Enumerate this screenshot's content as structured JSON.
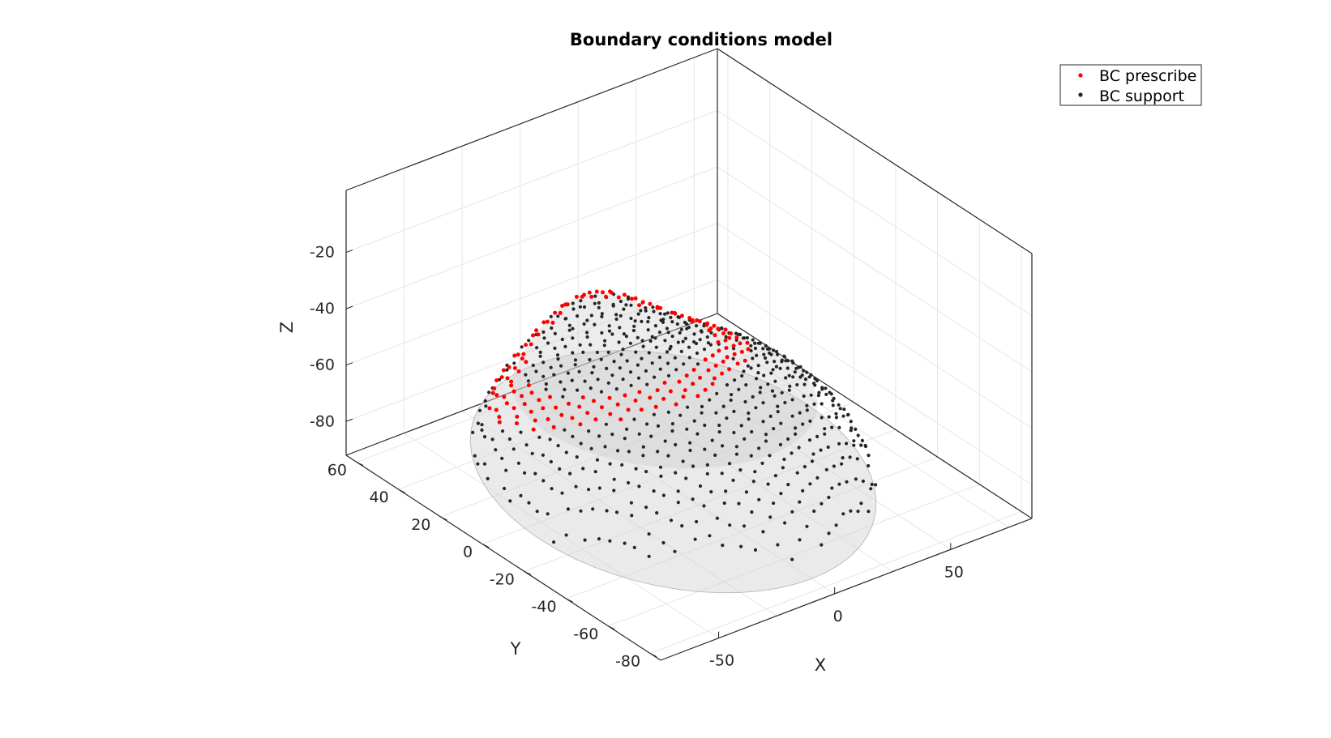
{
  "chart_data": {
    "type": "scatter",
    "projection": "3d",
    "title": "Boundary conditions model",
    "xlabel": "X",
    "ylabel": "Y",
    "zlabel": "Z",
    "xlim": [
      -75,
      85
    ],
    "ylim": [
      -85,
      65
    ],
    "zlim": [
      -92,
      2
    ],
    "xticks": [
      -50,
      0,
      50
    ],
    "yticks": [
      60,
      40,
      20,
      0,
      -20,
      -40,
      -60,
      -80
    ],
    "zticks": [
      -20,
      -40,
      -60,
      -80
    ],
    "grid": true,
    "legend_position": "top-right",
    "surface": {
      "name": "",
      "color": "#d0d0d0",
      "opacity": 0.45
    },
    "series": [
      {
        "name": "BC prescribe",
        "color": "#ff0000",
        "marker": "point",
        "region": "band of concentric rings on the upper surface"
      },
      {
        "name": "BC support",
        "color": "#262626",
        "marker": "point",
        "region": "surface nodes outside the prescribed band"
      }
    ]
  }
}
